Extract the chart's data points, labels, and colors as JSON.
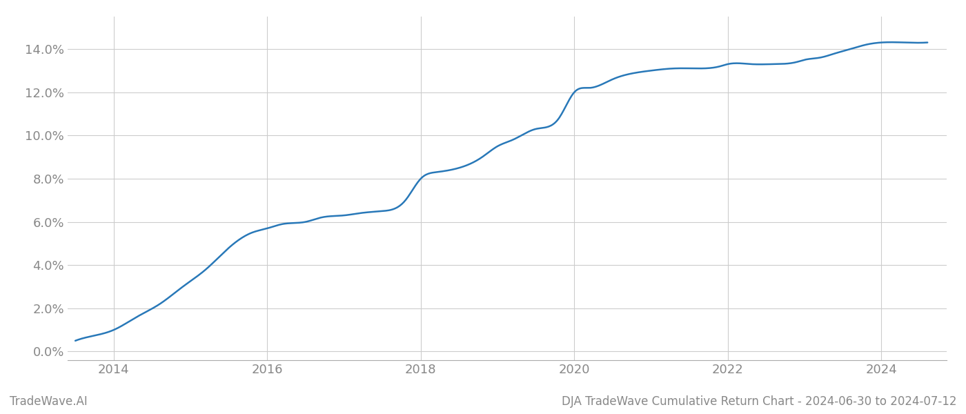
{
  "title": "DJA TradeWave Cumulative Return Chart - 2024-06-30 to 2024-07-12",
  "watermark": "TradeWave.AI",
  "line_color": "#2878b8",
  "line_width": 1.8,
  "background_color": "#ffffff",
  "grid_color": "#cccccc",
  "tick_color": "#888888",
  "xlim": [
    2013.4,
    2024.85
  ],
  "ylim": [
    -0.004,
    0.155
  ],
  "xticks": [
    2014,
    2016,
    2018,
    2020,
    2022,
    2024
  ],
  "yticks": [
    0.0,
    0.02,
    0.04,
    0.06,
    0.08,
    0.1,
    0.12,
    0.14
  ],
  "x": [
    2013.5,
    2013.7,
    2014.0,
    2014.3,
    2014.6,
    2014.9,
    2015.2,
    2015.5,
    2015.8,
    2016.0,
    2016.2,
    2016.5,
    2016.7,
    2017.0,
    2017.2,
    2017.5,
    2017.8,
    2018.0,
    2018.2,
    2018.5,
    2018.8,
    2019.0,
    2019.2,
    2019.5,
    2019.8,
    2020.0,
    2020.2,
    2020.5,
    2020.8,
    2021.0,
    2021.3,
    2021.6,
    2021.9,
    2022.0,
    2022.3,
    2022.6,
    2022.9,
    2023.0,
    2023.2,
    2023.4,
    2023.6,
    2023.8,
    2024.0,
    2024.3,
    2024.6
  ],
  "y": [
    0.005,
    0.007,
    0.01,
    0.016,
    0.022,
    0.03,
    0.038,
    0.048,
    0.055,
    0.057,
    0.059,
    0.06,
    0.062,
    0.063,
    0.064,
    0.065,
    0.07,
    0.08,
    0.083,
    0.085,
    0.09,
    0.095,
    0.098,
    0.103,
    0.108,
    0.12,
    0.122,
    0.126,
    0.129,
    0.13,
    0.131,
    0.131,
    0.132,
    0.133,
    0.133,
    0.133,
    0.134,
    0.135,
    0.136,
    0.138,
    0.14,
    0.142,
    0.143,
    0.143,
    0.143
  ]
}
